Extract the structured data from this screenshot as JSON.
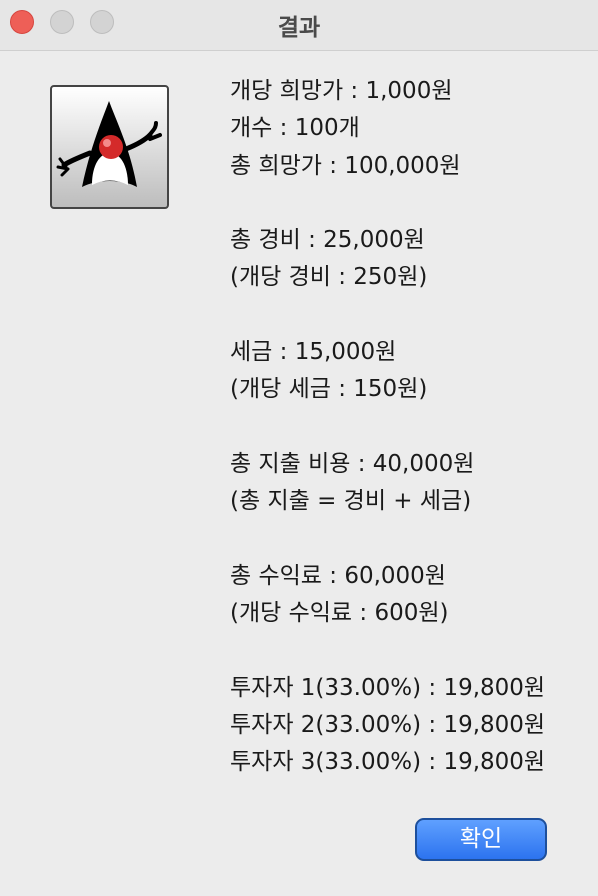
{
  "window": {
    "title": "결과"
  },
  "icon": {
    "name": "java-duke-icon"
  },
  "lines": [
    "개당 희망가 : 1,000원",
    "개수 : 100개",
    "총 희망가 : 100,000원",
    "",
    "총 경비 : 25,000원",
    "(개당 경비 : 250원)",
    "",
    "세금 : 15,000원",
    "(개당 세금 : 150원)",
    "",
    "총 지출 비용 : 40,000원",
    "(총 지출 = 경비 + 세금)",
    "",
    "총 수익료 : 60,000원",
    "(개당 수익료 : 600원)",
    "",
    "투자자 1(33.00%) : 19,800원",
    "투자자 2(33.00%) : 19,800원",
    "투자자 3(33.00%) : 19,800원"
  ],
  "buttons": {
    "ok_label": "확인"
  },
  "colors": {
    "close": "#ee5f57",
    "accent_button": "#2c73ef"
  }
}
